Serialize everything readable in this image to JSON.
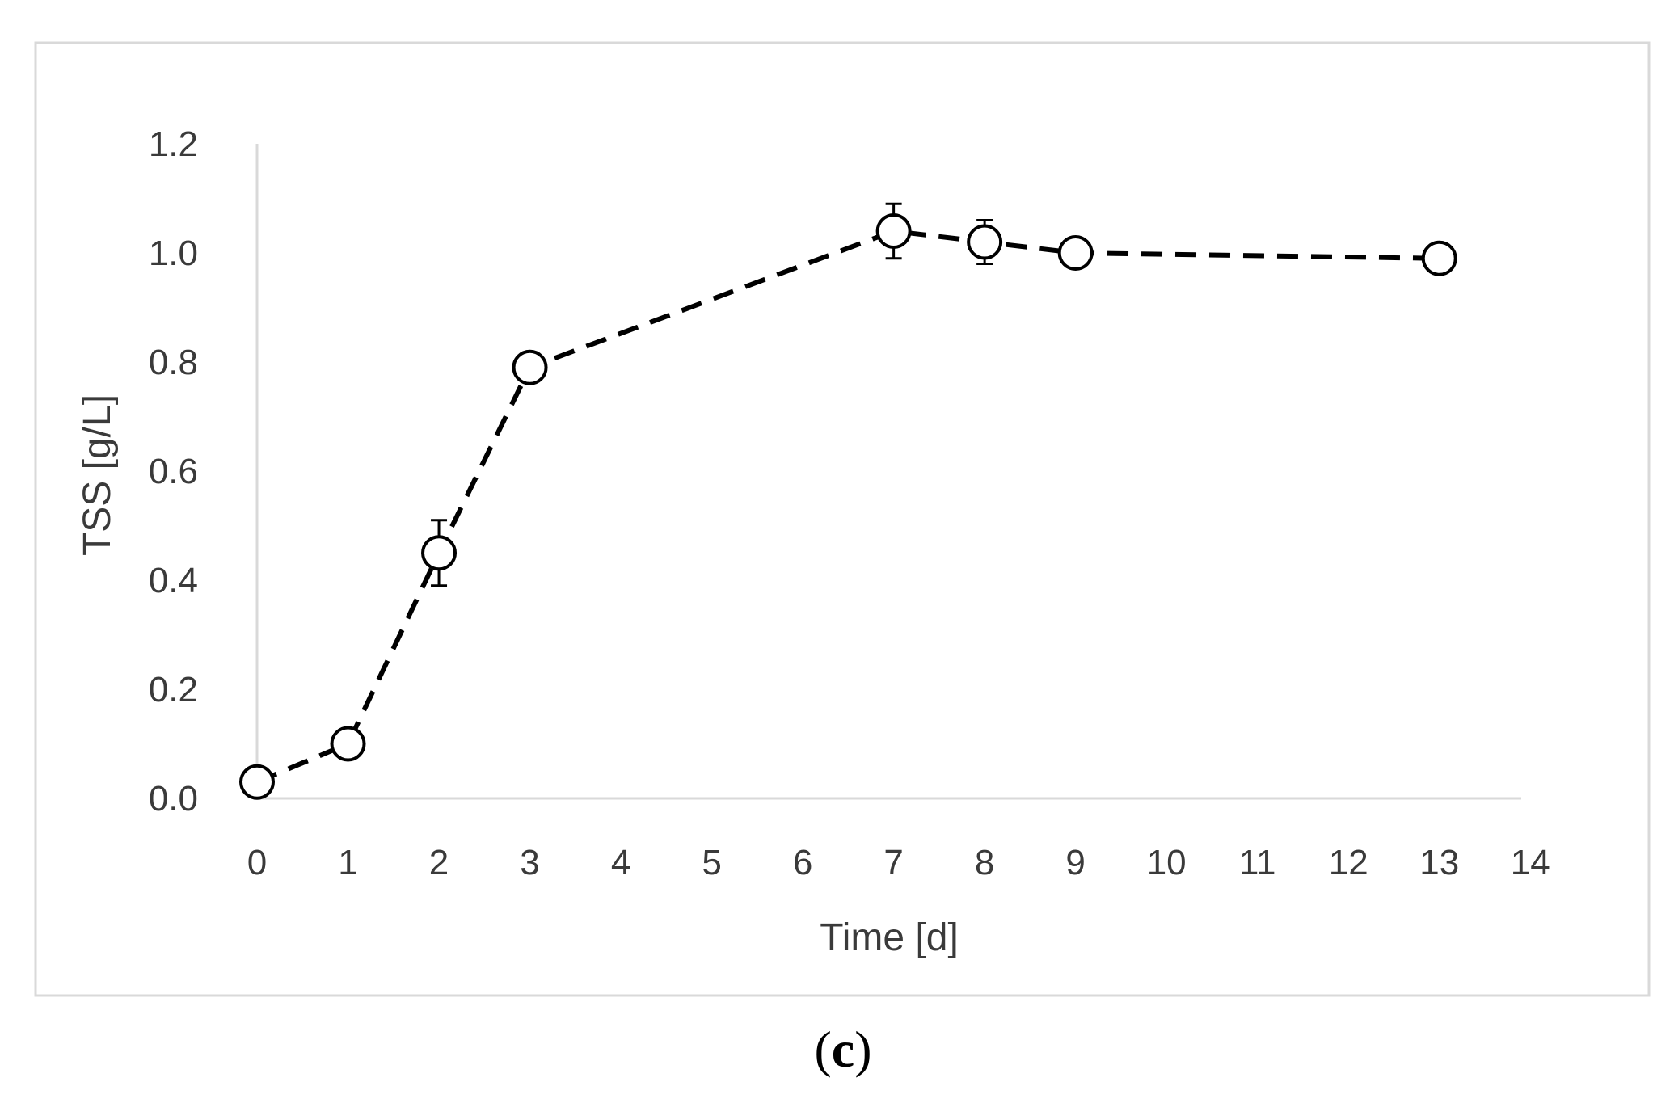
{
  "panel_label": {
    "open": "(",
    "letter": "c",
    "close": ")"
  },
  "chart_data": {
    "type": "line",
    "title": "",
    "xlabel": "Time [d]",
    "ylabel": "TSS [g/L]",
    "xlim": [
      0,
      14
    ],
    "ylim": [
      0,
      1.2
    ],
    "x_ticks": [
      0,
      1,
      2,
      3,
      4,
      5,
      6,
      7,
      8,
      9,
      10,
      11,
      12,
      13,
      14
    ],
    "x_tick_labels": [
      "0",
      "1",
      "2",
      "3",
      "4",
      "5",
      "6",
      "7",
      "8",
      "9",
      "10",
      "11",
      "12",
      "13",
      "14"
    ],
    "y_ticks": [
      0,
      0.2,
      0.4,
      0.6,
      0.8,
      1.0,
      1.2
    ],
    "y_tick_labels": [
      "0.0",
      "0.2",
      "0.4",
      "0.6",
      "0.8",
      "1.0",
      "1.2"
    ],
    "grid": false,
    "legend": "none",
    "line_style": "dashed",
    "marker": "open-circle",
    "colors": {
      "line": "#000000",
      "axis": "#d9d9d9",
      "frame": "#d9d9d9",
      "text": "#3a3a3a"
    },
    "series": [
      {
        "x": [
          0,
          1,
          2,
          3,
          7,
          8,
          9,
          13
        ],
        "y": [
          0.03,
          0.1,
          0.45,
          0.79,
          1.04,
          1.02,
          1.0,
          0.99
        ],
        "error": [
          0.0,
          0.0,
          0.06,
          0.0,
          0.05,
          0.04,
          0.0,
          0.02
        ]
      }
    ]
  }
}
